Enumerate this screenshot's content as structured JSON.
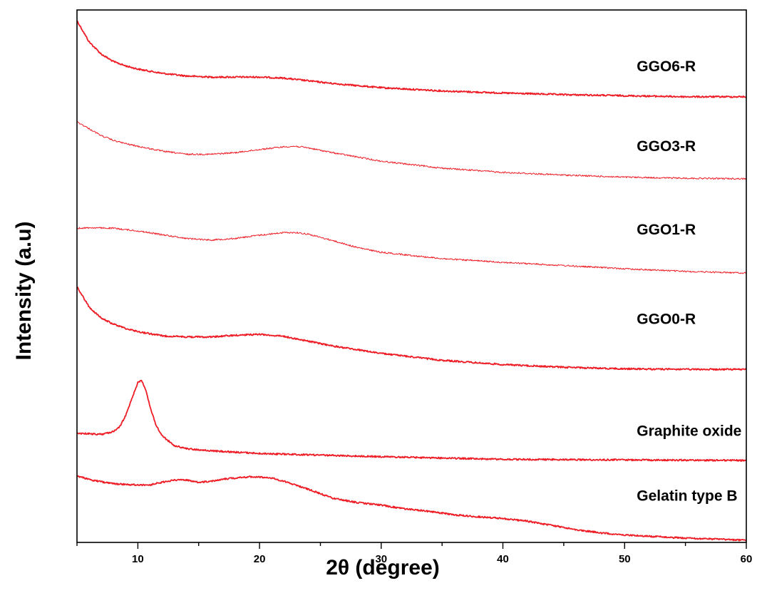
{
  "chart_data": {
    "type": "line",
    "title": "",
    "xlabel": "2θ (degree)",
    "ylabel": "Intensity (a.u)",
    "xlim": [
      5,
      60
    ],
    "xticks": [
      10,
      20,
      30,
      40,
      50,
      60
    ],
    "yticks": [],
    "ylim": [
      0,
      1
    ],
    "y_unit_note": "arbitrary intensity units, curves vertically offset",
    "line_color": "#ee1c25",
    "series": [
      {
        "name": "GGO6-R",
        "x": [
          5,
          6,
          7,
          8,
          9,
          10,
          12,
          14,
          16,
          18,
          20,
          22,
          24,
          26,
          28,
          30,
          35,
          40,
          45,
          50,
          55,
          60
        ],
        "y": [
          0.98,
          0.94,
          0.917,
          0.903,
          0.895,
          0.889,
          0.881,
          0.876,
          0.874,
          0.874,
          0.874,
          0.872,
          0.867,
          0.862,
          0.858,
          0.854,
          0.848,
          0.844,
          0.841,
          0.839,
          0.837,
          0.837
        ],
        "line_width": 1.8
      },
      {
        "name": "GGO3-R",
        "x": [
          5,
          6,
          7,
          8,
          9,
          10,
          12,
          14,
          16,
          18,
          20,
          22,
          23,
          24,
          26,
          28,
          30,
          35,
          40,
          45,
          50,
          55,
          60
        ],
        "y": [
          0.79,
          0.777,
          0.764,
          0.755,
          0.749,
          0.744,
          0.735,
          0.729,
          0.729,
          0.732,
          0.738,
          0.743,
          0.744,
          0.741,
          0.732,
          0.724,
          0.716,
          0.703,
          0.695,
          0.69,
          0.686,
          0.684,
          0.683
        ],
        "line_width": 1.0
      },
      {
        "name": "GGO1-R",
        "x": [
          5,
          6,
          8,
          10,
          12,
          14,
          16,
          18,
          20,
          22,
          23,
          24,
          26,
          28,
          30,
          35,
          40,
          45,
          50,
          55,
          60
        ],
        "y": [
          0.59,
          0.591,
          0.59,
          0.585,
          0.578,
          0.571,
          0.568,
          0.571,
          0.577,
          0.582,
          0.582,
          0.579,
          0.567,
          0.554,
          0.545,
          0.533,
          0.526,
          0.52,
          0.514,
          0.509,
          0.506
        ],
        "line_width": 1.0
      },
      {
        "name": "GGO0-R",
        "x": [
          5,
          6,
          7,
          8,
          9,
          10,
          12,
          14,
          16,
          18,
          20,
          22,
          24,
          26,
          28,
          30,
          35,
          40,
          45,
          50,
          55,
          60
        ],
        "y": [
          0.48,
          0.442,
          0.421,
          0.41,
          0.402,
          0.396,
          0.388,
          0.386,
          0.386,
          0.389,
          0.391,
          0.387,
          0.378,
          0.369,
          0.362,
          0.355,
          0.342,
          0.334,
          0.329,
          0.326,
          0.325,
          0.325
        ],
        "line_width": 1.8
      },
      {
        "name": "Graphite oxide",
        "x": [
          5,
          7,
          8,
          8.5,
          9,
          9.5,
          10,
          10.3,
          10.6,
          11,
          11.5,
          12,
          13,
          14,
          16,
          20,
          30,
          40,
          50,
          60
        ],
        "y": [
          0.205,
          0.203,
          0.208,
          0.217,
          0.238,
          0.27,
          0.3,
          0.305,
          0.29,
          0.255,
          0.22,
          0.2,
          0.182,
          0.176,
          0.172,
          0.167,
          0.161,
          0.156,
          0.155,
          0.154
        ],
        "line_width": 1.8
      },
      {
        "name": "Gelatin type B",
        "x": [
          5,
          6,
          8,
          10,
          11,
          12,
          13,
          14,
          15,
          16,
          17,
          18,
          19,
          20,
          21,
          22,
          24,
          26,
          28,
          30,
          32,
          34,
          36,
          38,
          40,
          42,
          44,
          46,
          48,
          50,
          55,
          60
        ],
        "y": [
          0.125,
          0.118,
          0.11,
          0.108,
          0.108,
          0.113,
          0.117,
          0.117,
          0.113,
          0.115,
          0.119,
          0.121,
          0.123,
          0.123,
          0.121,
          0.115,
          0.1,
          0.083,
          0.075,
          0.07,
          0.063,
          0.058,
          0.052,
          0.048,
          0.045,
          0.04,
          0.032,
          0.024,
          0.018,
          0.014,
          0.008,
          0.004
        ],
        "line_width": 1.8
      }
    ],
    "annotations": [
      {
        "text": "GGO6-R",
        "x": 51,
        "y": 0.885
      },
      {
        "text": "GGO3-R",
        "x": 51,
        "y": 0.735
      },
      {
        "text": "GGO1-R",
        "x": 51,
        "y": 0.578
      },
      {
        "text": "GGO0-R",
        "x": 51,
        "y": 0.41
      },
      {
        "text": "Graphite oxide",
        "x": 51,
        "y": 0.2
      },
      {
        "text": "Gelatin type B",
        "x": 51,
        "y": 0.078
      }
    ],
    "grid": false,
    "legend": "none"
  }
}
